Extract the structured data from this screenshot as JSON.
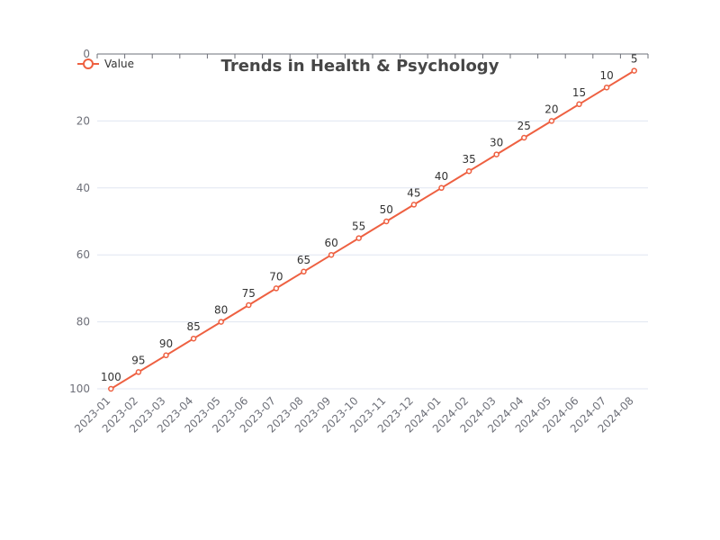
{
  "chart_data": {
    "type": "line",
    "title": "Trends in Health & Psychology",
    "categories": [
      "2023-01",
      "2023-02",
      "2023-03",
      "2023-04",
      "2023-05",
      "2023-06",
      "2023-07",
      "2023-08",
      "2023-09",
      "2023-10",
      "2023-11",
      "2023-12",
      "2024-01",
      "2024-02",
      "2024-03",
      "2024-04",
      "2024-05",
      "2024-06",
      "2024-07",
      "2024-08"
    ],
    "series": [
      {
        "name": "Value",
        "values": [
          100,
          95,
          90,
          85,
          80,
          75,
          70,
          65,
          60,
          55,
          50,
          45,
          40,
          35,
          30,
          25,
          20,
          15,
          10,
          5
        ]
      }
    ],
    "ylim": [
      0,
      100
    ],
    "y_inverse": true,
    "y_ticks": [
      "0",
      "20",
      "40",
      "60",
      "80",
      "100"
    ],
    "xlabel": "",
    "ylabel": "",
    "grid": true,
    "legend_position": "top-left",
    "colors": {
      "series": "#ee6041",
      "grid": "#e0e6f1",
      "axis": "#6e7079",
      "title": "#464646"
    }
  }
}
